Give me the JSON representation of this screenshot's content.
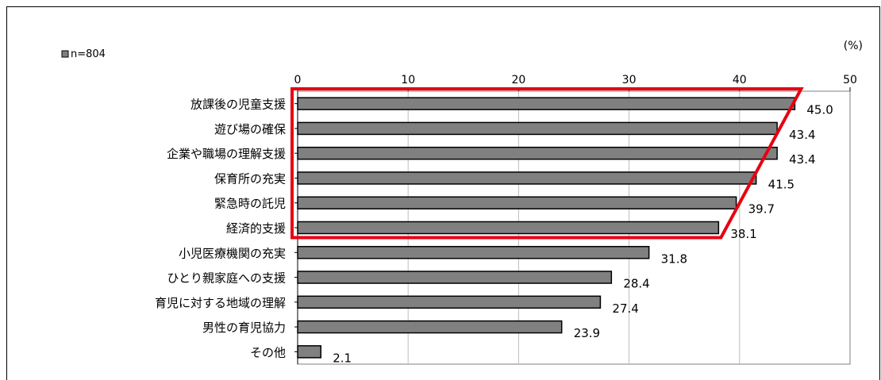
{
  "chart_data": {
    "type": "bar",
    "orientation": "horizontal",
    "legend": "n=804",
    "unit_label": "(%)",
    "categories": [
      "放課後の児童支援",
      "遊び場の確保",
      "企業や職場の理解支援",
      "保育所の充実",
      "緊急時の託児",
      "経済的支援",
      "小児医療機関の充実",
      "ひとり親家庭への支援",
      "育児に対する地域の理解",
      "男性の育児協力",
      "その他"
    ],
    "values": [
      45.0,
      43.4,
      43.4,
      41.5,
      39.7,
      38.1,
      31.8,
      28.4,
      27.4,
      23.9,
      2.1
    ],
    "value_labels": [
      "45.0",
      "43.4",
      "43.4",
      "41.5",
      "39.7",
      "38.1",
      "31.8",
      "28.4",
      "27.4",
      "23.9",
      "2.1"
    ],
    "xlim": [
      0,
      50
    ],
    "ticks": [
      "0",
      "10",
      "20",
      "30",
      "40",
      "50"
    ],
    "highlighted_count": 6,
    "colors": {
      "bar": "#808080",
      "bar_stroke": "#000000",
      "highlight": "#e60012"
    }
  }
}
